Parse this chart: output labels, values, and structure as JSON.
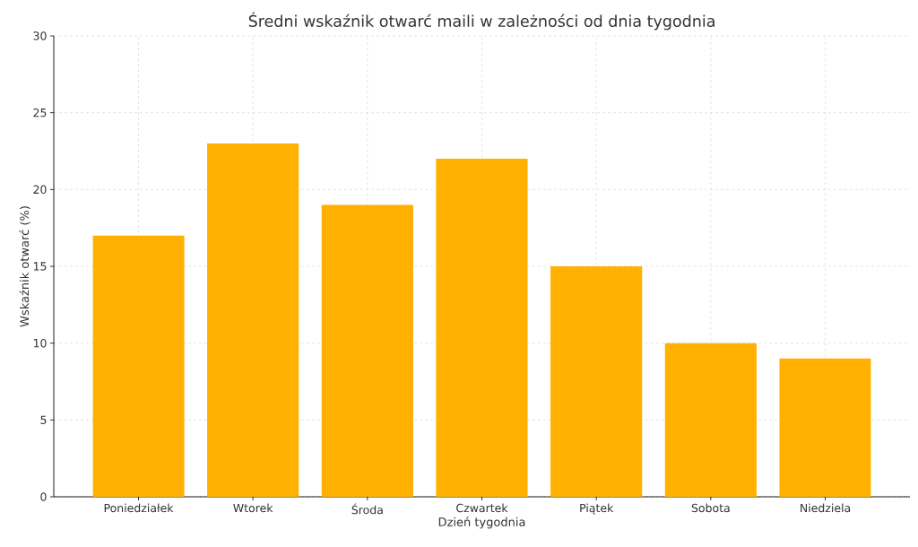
{
  "chart_data": {
    "type": "bar",
    "title": "Średni wskaźnik otwarć maili w zależności od dnia tygodnia",
    "xlabel": "Dzień tygodnia",
    "ylabel": "Wskaźnik otwarć (%)",
    "categories": [
      "Poniedziałek",
      "Wtorek",
      "Środa",
      "Czwartek",
      "Piątek",
      "Sobota",
      "Niedziela"
    ],
    "values": [
      17,
      23,
      19,
      22,
      15,
      10,
      9
    ],
    "color": "#ffb000",
    "ylim": [
      0,
      30
    ],
    "yticks": [
      0,
      5,
      10,
      15,
      20,
      25,
      30
    ],
    "grid": true
  }
}
